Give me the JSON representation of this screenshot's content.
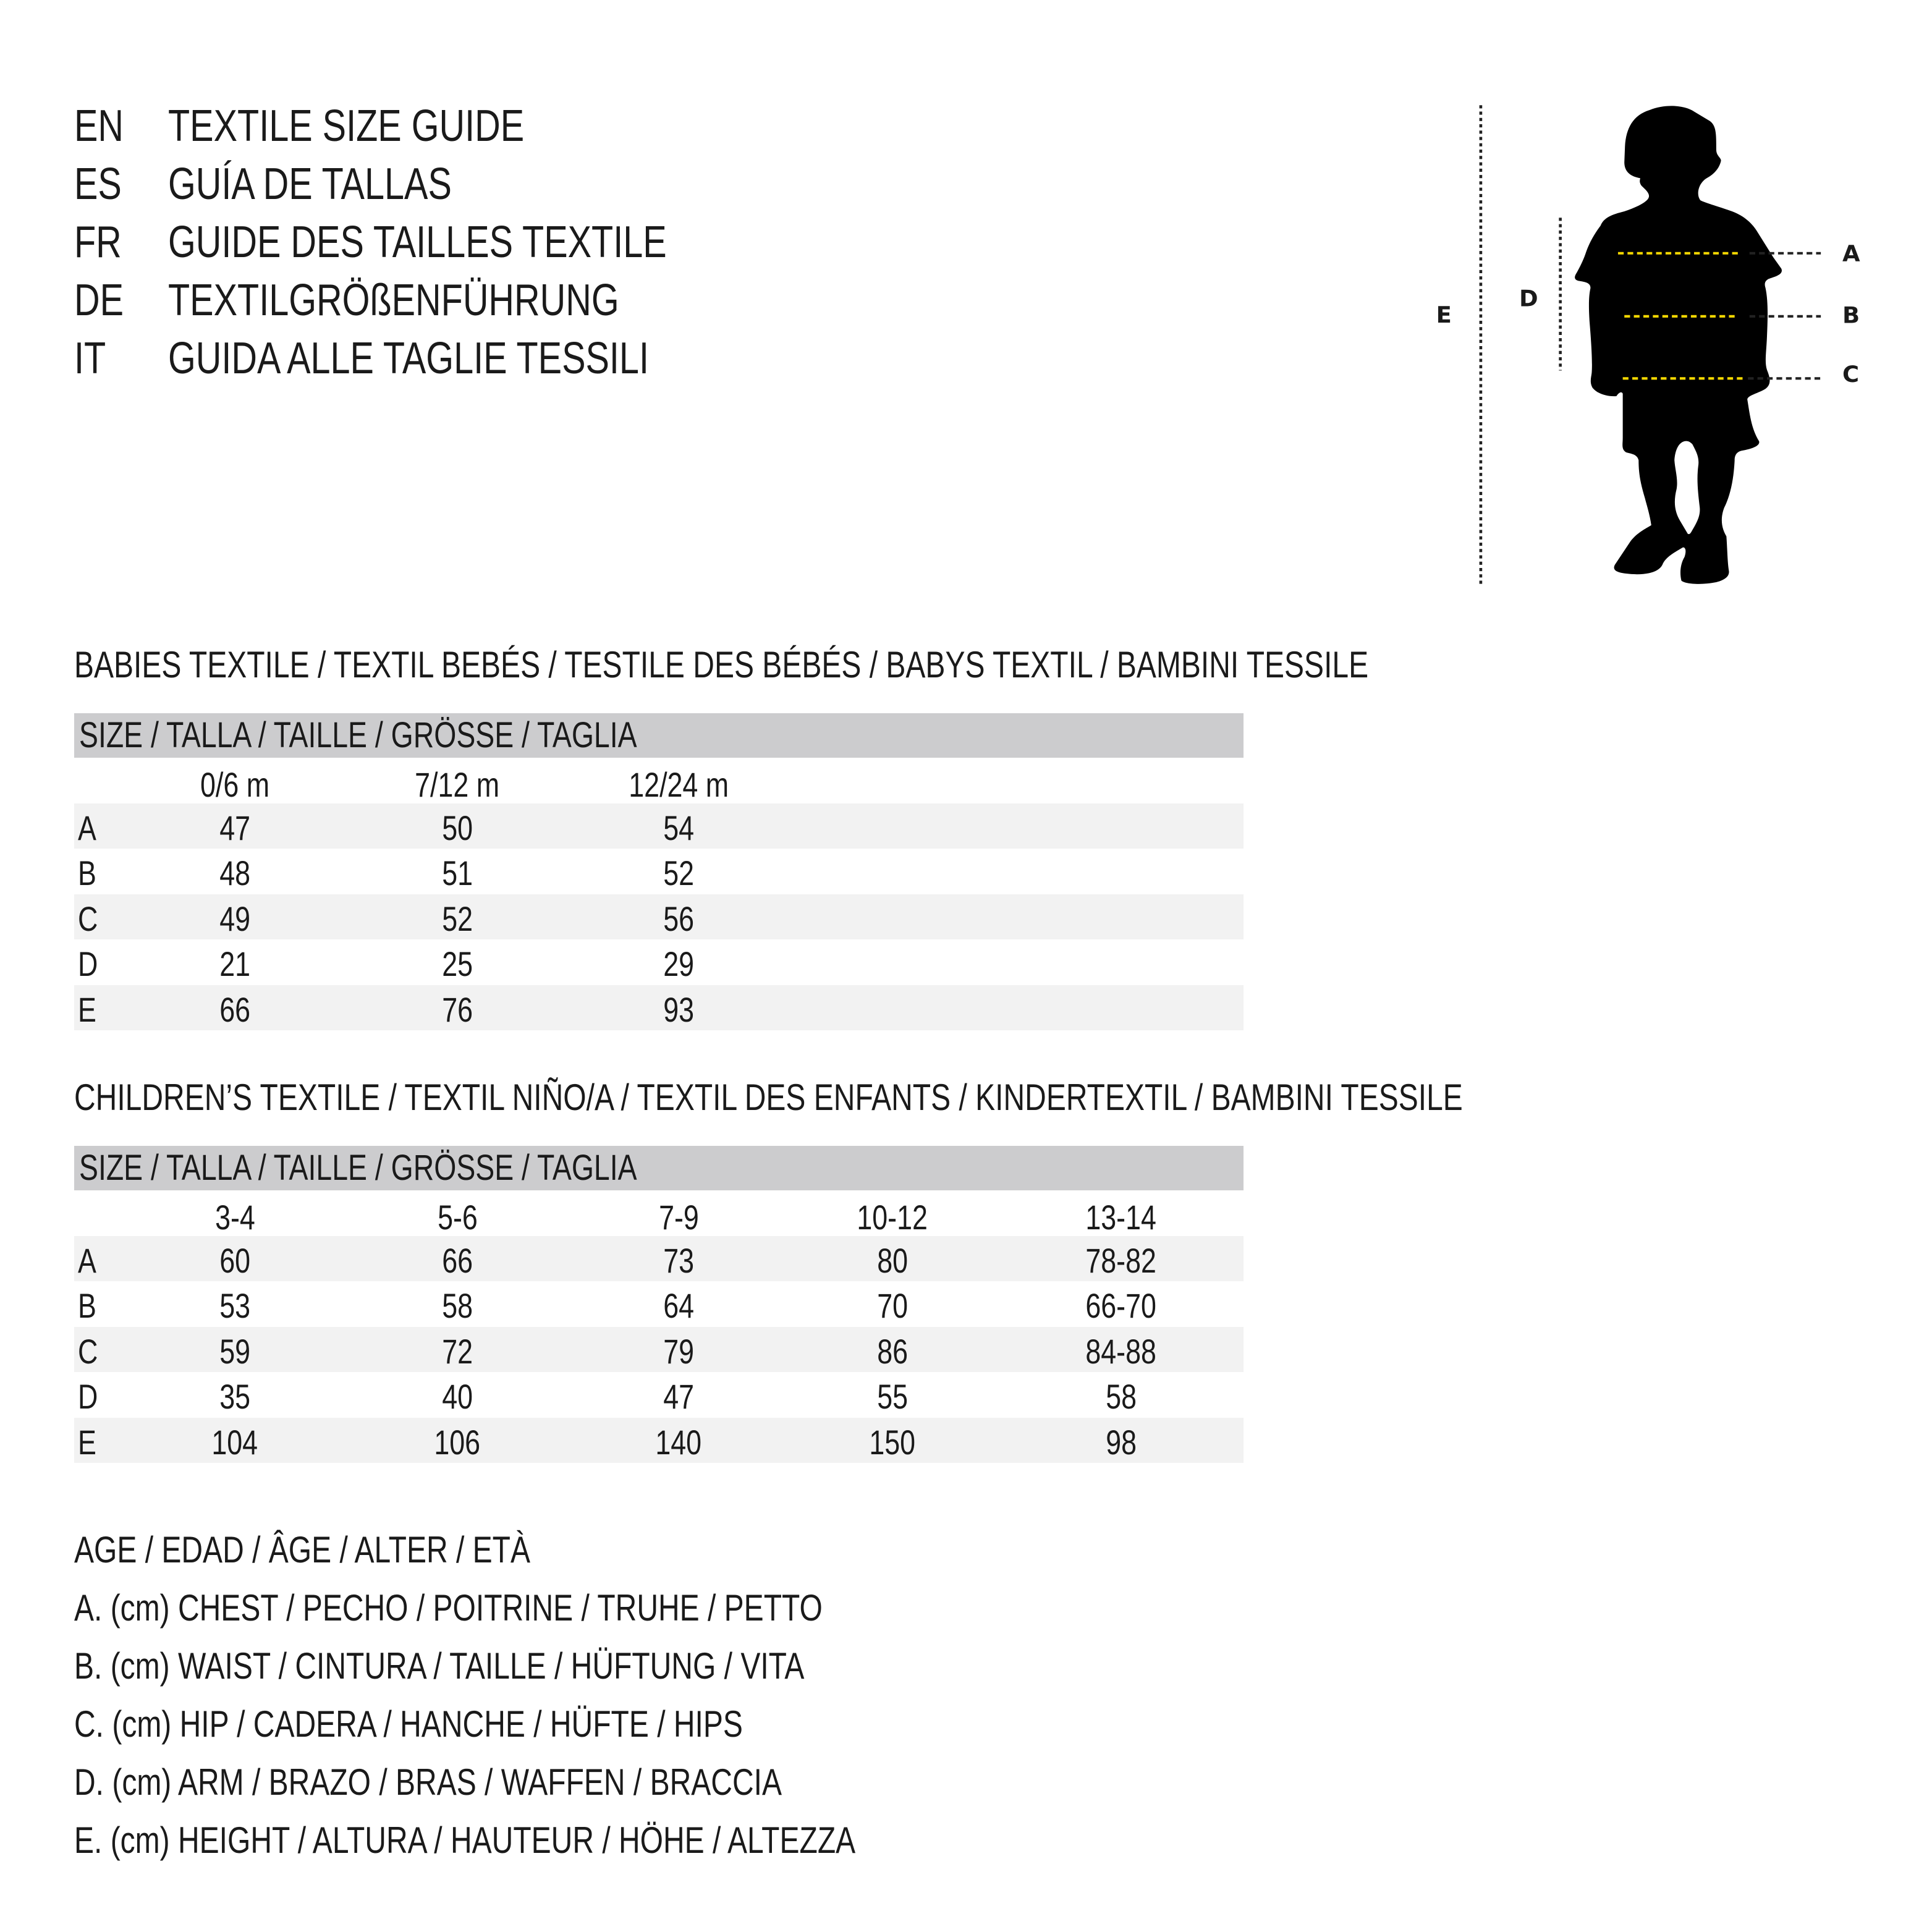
{
  "title_lines": [
    {
      "code": "EN",
      "text": "TEXTILE SIZE GUIDE"
    },
    {
      "code": "ES",
      "text": "GUÍA DE TALLAS"
    },
    {
      "code": "FR",
      "text": "GUIDE DES TAILLES TEXTILE"
    },
    {
      "code": "DE",
      "text": "TEXTILGRÖßENFÜHRUNG"
    },
    {
      "code": "IT",
      "text": "GUIDA ALLE TAGLIE TESSILI"
    }
  ],
  "figure": {
    "labels": {
      "A": "A",
      "B": "B",
      "C": "C",
      "D": "D",
      "E": "E"
    },
    "colors": {
      "silhouette": "#000000",
      "measure_line": "#f5d800",
      "guide_line": "#222222"
    }
  },
  "babies": {
    "heading": "BABIES TEXTILE / TEXTIL BEBÉS / TESTILE DES BÉBÉS / BABYS TEXTIL / BAMBINI TESSILE",
    "size_header": "SIZE / TALLA / TAILLE / GRÖSSE / TAGLIA",
    "columns": [
      "0/6 m",
      "7/12 m",
      "12/24 m"
    ],
    "rows": [
      {
        "label": "A",
        "values": [
          "47",
          "50",
          "54"
        ]
      },
      {
        "label": "B",
        "values": [
          "48",
          "51",
          "52"
        ]
      },
      {
        "label": "C",
        "values": [
          "49",
          "52",
          "56"
        ]
      },
      {
        "label": "D",
        "values": [
          "21",
          "25",
          "29"
        ]
      },
      {
        "label": "E",
        "values": [
          "66",
          "76",
          "93"
        ]
      }
    ]
  },
  "children": {
    "heading": "CHILDREN’S TEXTILE / TEXTIL NIÑO/A / TEXTIL DES ENFANTS / KINDERTEXTIL / BAMBINI TESSILE",
    "size_header": "SIZE / TALLA / TAILLE / GRÖSSE / TAGLIA",
    "columns": [
      "3-4",
      "5-6",
      "7-9",
      "10-12",
      "13-14"
    ],
    "rows": [
      {
        "label": "A",
        "values": [
          "60",
          "66",
          "73",
          "80",
          "78-82"
        ]
      },
      {
        "label": "B",
        "values": [
          "53",
          "58",
          "64",
          "70",
          "66-70"
        ]
      },
      {
        "label": "C",
        "values": [
          "59",
          "72",
          "79",
          "86",
          "84-88"
        ]
      },
      {
        "label": "D",
        "values": [
          "35",
          "40",
          "47",
          "55",
          "58"
        ]
      },
      {
        "label": "E",
        "values": [
          "104",
          "106",
          "140",
          "150",
          "98"
        ]
      }
    ]
  },
  "legend": [
    "AGE / EDAD / ÂGE / ALTER / ETÀ",
    "A. (cm) CHEST / PECHO / POITRINE / TRUHE / PETTO",
    "B. (cm) WAIST / CINTURA / TAILLE / HÜFTUNG / VITA",
    "C. (cm) HIP / CADERA / HANCHE / HÜFTE / HIPS",
    "D. (cm) ARM / BRAZO / BRAS / WAFFEN / BRACCIA",
    "E. (cm) HEIGHT / ALTURA / HAUTEUR / HÖHE / ALTEZZA"
  ]
}
